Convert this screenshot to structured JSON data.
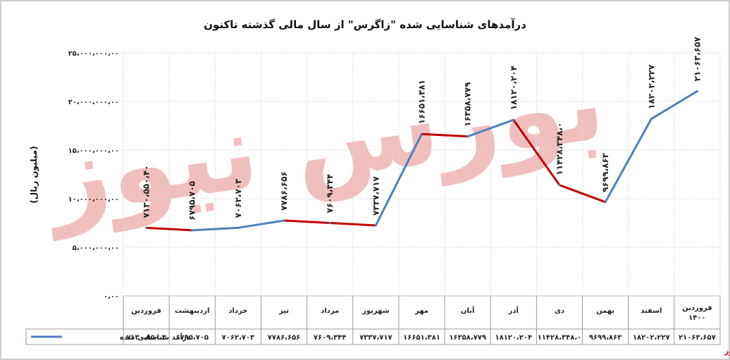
{
  "chart_data": {
    "type": "line",
    "title": "درآمدهای شناسایی شده \"زاگرس\" از سال مالی گذشته تاکنون",
    "ylabel": "(میلیون ریال)",
    "ylim": [
      0,
      25000000000
    ],
    "yticks": [
      0,
      5000000000,
      10000000000,
      15000000000,
      20000000000,
      25000000000
    ],
    "ytick_labels": [
      "۰،۰۰",
      "۵،۰۰۰،۰۰۰،۰۰",
      "۱۰،۰۰۰،۰۰۰،۰۰",
      "۱۵،۰۰۰،۰۰۰،۰۰",
      "۲۰،۰۰۰،۰۰۰،۰۰",
      "۲۵،۰۰۰،۰۰۰،۰۰"
    ],
    "grid": true,
    "categories": [
      "فروردین",
      "اردیبهشت",
      "خرداد",
      "تیر",
      "مرداد",
      "شهریور",
      "مهر",
      "آبان",
      "آذر",
      "دی",
      "بهمن",
      "اسفند",
      "فروردین ۱۴۰۰"
    ],
    "series": [
      {
        "name": "درآمد شناسایی شده",
        "color": "#4f81bd",
        "values": [
          7130550.4,
          6795705,
          7062703,
          7786656,
          7609344,
          7337717,
          16651381,
          16358779,
          18120204,
          11428348,
          9699863,
          18202227,
          21063657
        ],
        "plot_values": [
          7000000000,
          6750000000,
          7000000000,
          7750000000,
          7500000000,
          7250000000,
          16650000000,
          16400000000,
          18100000000,
          11400000000,
          9650000000,
          18200000000,
          21050000000
        ],
        "data_labels": [
          "۷۱۳۰،۵۵۰،۴۰",
          "۶۷۹۵،۷۰۵",
          "۷۰۶۲،۷۰۳",
          "۷۷۸۶،۶۵۶",
          "۷۶۰۹،۳۴۴",
          "۷۳۳۷،۷۱۷",
          "۱۶۶۵۱،۳۸۱",
          "۱۶۳۵۸،۷۷۹",
          "۱۸۱۲۰،۲۰۴",
          "۱۱۴۲۸،۳۴۸،۰",
          "۹۶۹۹،۸۶۳",
          "۱۸۲۰۲،۲۲۷",
          "۲۱۰۶۳،۶۵۷"
        ],
        "table_values": [
          "۷۱۳۰،۵۵۰،۴",
          "۶۷۹۵،۷۰۵",
          "۷۰۶۲،۷۰۳",
          "۷۷۸۶،۶۵۶",
          "۷۶۰۹،۳۴۴",
          "۷۳۳۷،۷۱۷",
          "۱۶۶۵۱،۳۸۱",
          "۱۶۳۵۸،۷۷۹",
          "۱۸۱۲۰،۲۰۴",
          "۱۱۴۲۸،۳۴۸،۰",
          "۹۶۹۹،۸۶۳",
          "۱۸۲۰۲،۲۲۷",
          "۲۱۰۶۳،۶۵۷"
        ]
      }
    ],
    "decrease_color": "#c00000",
    "legend": "bottom-left data table",
    "watermark": "بورس نیوز",
    "brand": "بورس نیوز"
  }
}
